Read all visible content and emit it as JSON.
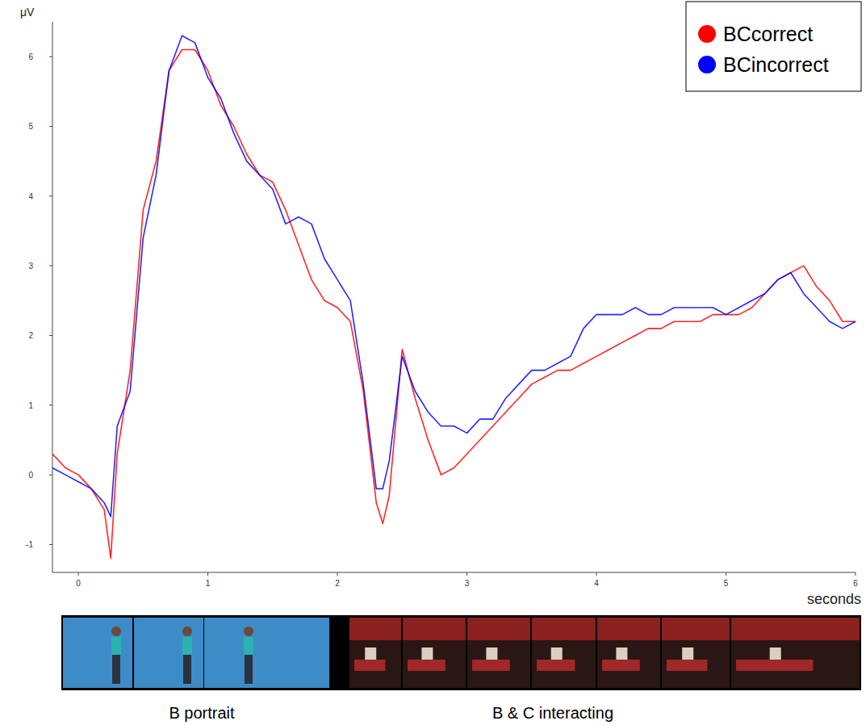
{
  "chart_data": {
    "type": "line",
    "y_label": "μV",
    "x_label": "seconds",
    "x": [
      -0.2,
      -0.1,
      0,
      0.1,
      0.2,
      0.25,
      0.3,
      0.4,
      0.5,
      0.6,
      0.7,
      0.8,
      0.9,
      1.0,
      1.1,
      1.2,
      1.3,
      1.4,
      1.5,
      1.6,
      1.7,
      1.8,
      1.9,
      2.0,
      2.1,
      2.2,
      2.3,
      2.35,
      2.4,
      2.5,
      2.6,
      2.7,
      2.8,
      2.9,
      3.0,
      3.1,
      3.2,
      3.3,
      3.4,
      3.5,
      3.6,
      3.7,
      3.8,
      3.9,
      4.0,
      4.1,
      4.2,
      4.3,
      4.4,
      4.5,
      4.6,
      4.7,
      4.8,
      4.9,
      5.0,
      5.1,
      5.2,
      5.3,
      5.4,
      5.5,
      5.6,
      5.7,
      5.8,
      5.9,
      6.0
    ],
    "series": [
      {
        "name": "BCcorrect",
        "color": "#ff0000",
        "values": [
          0.3,
          0.1,
          0.0,
          -0.2,
          -0.5,
          -1.2,
          0.3,
          1.5,
          3.8,
          4.5,
          5.8,
          6.1,
          6.1,
          5.8,
          5.3,
          5.0,
          4.6,
          4.3,
          4.2,
          3.8,
          3.3,
          2.8,
          2.5,
          2.4,
          2.2,
          1.2,
          -0.4,
          -0.7,
          -0.3,
          1.8,
          1.1,
          0.5,
          0.0,
          0.1,
          0.3,
          0.5,
          0.7,
          0.9,
          1.1,
          1.3,
          1.4,
          1.5,
          1.5,
          1.6,
          1.7,
          1.8,
          1.9,
          2.0,
          2.1,
          2.1,
          2.2,
          2.2,
          2.2,
          2.3,
          2.3,
          2.3,
          2.4,
          2.6,
          2.8,
          2.9,
          3.0,
          2.7,
          2.5,
          2.2,
          2.2
        ]
      },
      {
        "name": "BCincorrect",
        "color": "#0000ff",
        "values": [
          0.1,
          0.0,
          -0.1,
          -0.2,
          -0.4,
          -0.6,
          0.7,
          1.2,
          3.4,
          4.3,
          5.8,
          6.3,
          6.2,
          5.7,
          5.4,
          4.9,
          4.5,
          4.3,
          4.1,
          3.6,
          3.7,
          3.6,
          3.1,
          2.8,
          2.5,
          1.3,
          -0.2,
          -0.2,
          0.2,
          1.7,
          1.2,
          0.9,
          0.7,
          0.7,
          0.6,
          0.8,
          0.8,
          1.1,
          1.3,
          1.5,
          1.5,
          1.6,
          1.7,
          2.1,
          2.3,
          2.3,
          2.3,
          2.4,
          2.3,
          2.3,
          2.4,
          2.4,
          2.4,
          2.4,
          2.3,
          2.4,
          2.5,
          2.6,
          2.8,
          2.9,
          2.6,
          2.4,
          2.2,
          2.1,
          2.2
        ]
      }
    ],
    "xlim": [
      -0.2,
      6
    ],
    "ylim": [
      -1.4,
      6.5
    ],
    "xticks": [
      0,
      1,
      2,
      3,
      4,
      5,
      6
    ],
    "yticks": [
      -1,
      0,
      1,
      2,
      3,
      4,
      5,
      6
    ],
    "legend": "top-right",
    "annotations": [
      "B portrait",
      "B & C interacting"
    ]
  }
}
